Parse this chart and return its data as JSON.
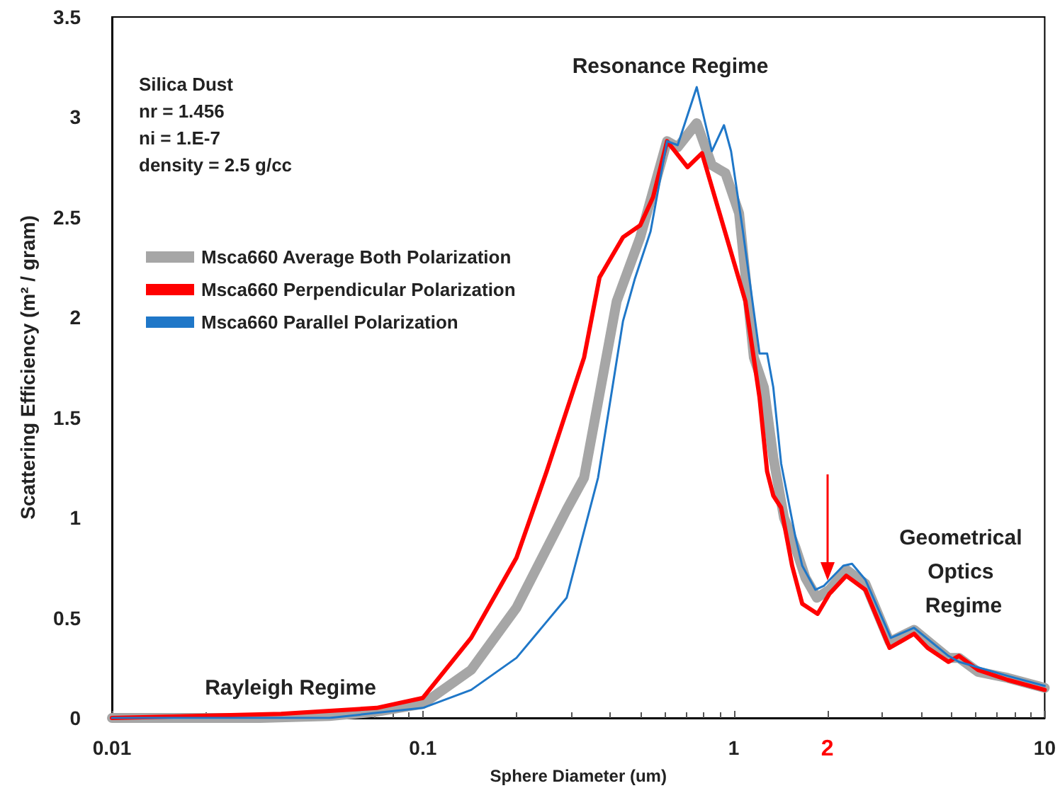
{
  "chart_data": {
    "type": "line",
    "xlabel": "Sphere Diameter (um)",
    "ylabel": "Scattering Efficiency (m² / gram)",
    "log": "x",
    "xlim": [
      0.01,
      10
    ],
    "xticks": [
      0.01,
      0.1,
      1,
      {
        "value": 2,
        "label": "2"
      },
      10
    ],
    "ylim": [
      0,
      3.5
    ],
    "yticks": [
      0,
      0.5,
      1,
      1.5,
      2,
      2.5,
      3,
      3.5
    ],
    "grid": false,
    "legend": "top left",
    "marker": "none",
    "line_style": "solid",
    "annotations": [
      "Silica Dust\nnr = 1.456\nni = 1.E-7\ndensity = 2.5 g/cc",
      "Resonance Regime",
      "Rayleigh Regime",
      "Geometrical Optics Regime"
    ],
    "series": [
      {
        "name": "Msca660 Average Both Polarization",
        "color": "#a6a6a6",
        "x": [
          0.01,
          0.03,
          0.05,
          0.07,
          0.1,
          0.143,
          0.2,
          0.29,
          0.33,
          0.42,
          0.5,
          0.61,
          0.66,
          0.76,
          0.85,
          0.94,
          1.04,
          1.16,
          1.25,
          1.34,
          1.45,
          1.58,
          1.7,
          1.85,
          2.03,
          2.3,
          2.65,
          3.17,
          3.8,
          4.9,
          5.3,
          6.1,
          7.6,
          10
        ],
        "values": [
          0,
          0,
          0.01,
          0.03,
          0.07,
          0.24,
          0.55,
          1.04,
          1.2,
          2.08,
          2.4,
          2.88,
          2.85,
          2.97,
          2.76,
          2.72,
          2.52,
          1.8,
          1.65,
          1.3,
          1.0,
          0.85,
          0.7,
          0.6,
          0.64,
          0.74,
          0.67,
          0.38,
          0.44,
          0.3,
          0.3,
          0.23,
          0.2,
          0.15
        ]
      },
      {
        "name": "Msca660 Perpendicular Polarization",
        "color": "#ff0000",
        "x": [
          0.01,
          0.035,
          0.071,
          0.1,
          0.143,
          0.2,
          0.25,
          0.33,
          0.37,
          0.44,
          0.5,
          0.55,
          0.61,
          0.71,
          0.79,
          0.9,
          1.09,
          1.21,
          1.28,
          1.34,
          1.42,
          1.54,
          1.66,
          1.86,
          2.03,
          2.3,
          2.65,
          3.17,
          3.8,
          4.2,
          4.9,
          5.3,
          6.1,
          7.6,
          10
        ],
        "values": [
          0,
          0.02,
          0.05,
          0.1,
          0.4,
          0.8,
          1.23,
          1.8,
          2.2,
          2.4,
          2.46,
          2.6,
          2.88,
          2.75,
          2.82,
          2.52,
          2.08,
          1.6,
          1.23,
          1.11,
          1.05,
          0.76,
          0.57,
          0.52,
          0.62,
          0.71,
          0.64,
          0.35,
          0.42,
          0.35,
          0.28,
          0.31,
          0.24,
          0.19,
          0.14
        ]
      },
      {
        "name": "Msca660 Parallel Polarization",
        "color": "#1f77c8",
        "x": [
          0.01,
          0.05,
          0.1,
          0.143,
          0.2,
          0.29,
          0.366,
          0.44,
          0.48,
          0.54,
          0.61,
          0.66,
          0.76,
          0.85,
          0.93,
          0.98,
          1.07,
          1.21,
          1.28,
          1.34,
          1.42,
          1.58,
          1.66,
          1.83,
          1.95,
          2.25,
          2.4,
          2.65,
          3.2,
          3.8,
          4.9,
          5.3,
          7.6,
          10
        ],
        "values": [
          0,
          0,
          0.05,
          0.14,
          0.3,
          0.6,
          1.2,
          1.98,
          2.19,
          2.43,
          2.88,
          2.86,
          3.15,
          2.83,
          2.96,
          2.83,
          2.43,
          1.82,
          1.82,
          1.65,
          1.27,
          0.9,
          0.76,
          0.64,
          0.66,
          0.76,
          0.77,
          0.69,
          0.4,
          0.45,
          0.31,
          0.28,
          0.21,
          0.16
        ]
      }
    ]
  }
}
